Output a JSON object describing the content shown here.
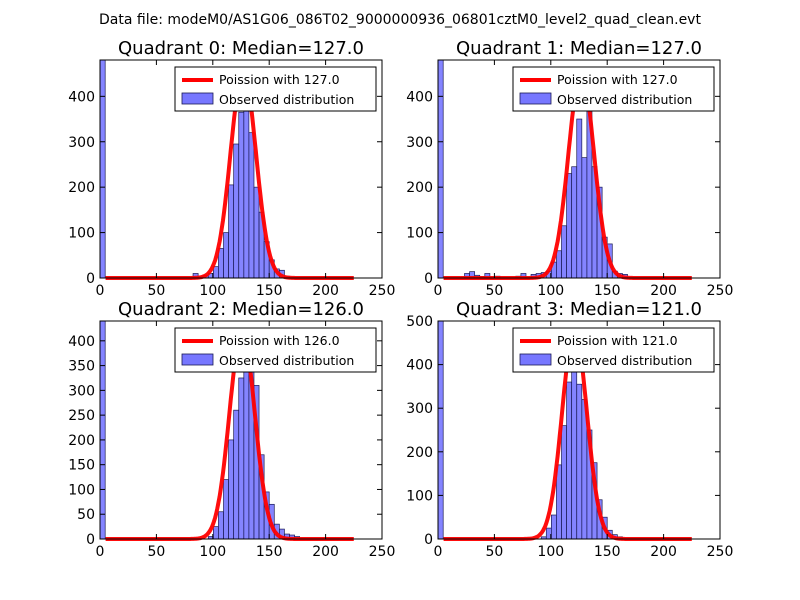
{
  "figure": {
    "suptitle": "Data file: modeM0/AS1G06_086T02_9000000936_06801cztM0_level2_quad_clean.evt",
    "colors": {
      "observed": "#7777ff",
      "poisson": "#ff0000",
      "frame": "#000000"
    }
  },
  "chart_data": [
    {
      "type": "bar",
      "title": "Quadrant 0: Median=127.0",
      "xlim": [
        0,
        250
      ],
      "ylim": [
        0,
        480
      ],
      "xticks": [
        0,
        50,
        100,
        150,
        200,
        250
      ],
      "yticks": [
        0,
        100,
        200,
        300,
        400
      ],
      "legend": {
        "placement": "top-right",
        "poisson_label": "Poission with 127.0",
        "observed_label": "Observed distribution"
      },
      "poisson_mean": 127.0,
      "poisson_peak": 455,
      "bins": [
        {
          "x0": 0,
          "x1": 4.6,
          "value": 480
        },
        {
          "x0": 82.5,
          "x1": 87,
          "value": 10
        },
        {
          "x0": 87,
          "x1": 91.5,
          "value": 4
        },
        {
          "x0": 91.5,
          "x1": 96,
          "value": 6
        },
        {
          "x0": 96,
          "x1": 100.5,
          "value": 10
        },
        {
          "x0": 100.5,
          "x1": 105,
          "value": 25
        },
        {
          "x0": 105,
          "x1": 109.5,
          "value": 65
        },
        {
          "x0": 109.5,
          "x1": 114,
          "value": 100
        },
        {
          "x0": 114,
          "x1": 118.5,
          "value": 205
        },
        {
          "x0": 118.5,
          "x1": 123,
          "value": 295
        },
        {
          "x0": 123,
          "x1": 127.5,
          "value": 365
        },
        {
          "x0": 127.5,
          "x1": 132,
          "value": 460
        },
        {
          "x0": 132,
          "x1": 136.5,
          "value": 320
        },
        {
          "x0": 136.5,
          "x1": 141,
          "value": 200
        },
        {
          "x0": 141,
          "x1": 145.5,
          "value": 145
        },
        {
          "x0": 145.5,
          "x1": 150,
          "value": 80
        },
        {
          "x0": 150,
          "x1": 154.5,
          "value": 40
        },
        {
          "x0": 154.5,
          "x1": 159,
          "value": 20
        },
        {
          "x0": 159,
          "x1": 163.5,
          "value": 17
        },
        {
          "x0": 163.5,
          "x1": 168,
          "value": 4
        }
      ]
    },
    {
      "type": "bar",
      "title": "Quadrant 1: Median=127.0",
      "xlim": [
        0,
        250
      ],
      "ylim": [
        0,
        480
      ],
      "xticks": [
        0,
        50,
        100,
        150,
        200,
        250
      ],
      "yticks": [
        0,
        100,
        200,
        300,
        400
      ],
      "legend": {
        "placement": "top-right",
        "poisson_label": "Poission with 127.0",
        "observed_label": "Observed distribution"
      },
      "poisson_mean": 127.0,
      "poisson_peak": 455,
      "bins": [
        {
          "x0": 0,
          "x1": 4.6,
          "value": 480
        },
        {
          "x0": 23.5,
          "x1": 28,
          "value": 10
        },
        {
          "x0": 28,
          "x1": 32.5,
          "value": 14
        },
        {
          "x0": 32.5,
          "x1": 37,
          "value": 6
        },
        {
          "x0": 37,
          "x1": 41.5,
          "value": 3
        },
        {
          "x0": 41.5,
          "x1": 46,
          "value": 10
        },
        {
          "x0": 50.5,
          "x1": 55,
          "value": 4
        },
        {
          "x0": 69,
          "x1": 73.5,
          "value": 4
        },
        {
          "x0": 73.5,
          "x1": 78,
          "value": 10
        },
        {
          "x0": 82.5,
          "x1": 87,
          "value": 8
        },
        {
          "x0": 87,
          "x1": 91.5,
          "value": 10
        },
        {
          "x0": 91.5,
          "x1": 96,
          "value": 12
        },
        {
          "x0": 96,
          "x1": 100.5,
          "value": 15
        },
        {
          "x0": 100.5,
          "x1": 105,
          "value": 35
        },
        {
          "x0": 105,
          "x1": 109.5,
          "value": 60
        },
        {
          "x0": 109.5,
          "x1": 114,
          "value": 115
        },
        {
          "x0": 114,
          "x1": 118.5,
          "value": 230
        },
        {
          "x0": 118.5,
          "x1": 123,
          "value": 245
        },
        {
          "x0": 123,
          "x1": 127.5,
          "value": 350
        },
        {
          "x0": 127.5,
          "x1": 132,
          "value": 265
        },
        {
          "x0": 132,
          "x1": 136.5,
          "value": 370
        },
        {
          "x0": 136.5,
          "x1": 141,
          "value": 245
        },
        {
          "x0": 141,
          "x1": 145.5,
          "value": 200
        },
        {
          "x0": 145.5,
          "x1": 150,
          "value": 90
        },
        {
          "x0": 150,
          "x1": 154.5,
          "value": 75
        },
        {
          "x0": 154.5,
          "x1": 159,
          "value": 15
        },
        {
          "x0": 159,
          "x1": 163.5,
          "value": 10
        },
        {
          "x0": 163.5,
          "x1": 168,
          "value": 8
        }
      ]
    },
    {
      "type": "bar",
      "title": "Quadrant 2: Median=126.0",
      "xlim": [
        0,
        250
      ],
      "ylim": [
        0,
        440
      ],
      "xticks": [
        0,
        50,
        100,
        150,
        200,
        250
      ],
      "yticks": [
        0,
        50,
        100,
        150,
        200,
        250,
        300,
        350,
        400
      ],
      "legend": {
        "placement": "top-right",
        "poisson_label": "Poission with 126.0",
        "observed_label": "Observed distribution"
      },
      "poisson_mean": 126.0,
      "poisson_peak": 420,
      "bins": [
        {
          "x0": 0,
          "x1": 4.6,
          "value": 440
        },
        {
          "x0": 96,
          "x1": 100.5,
          "value": 5
        },
        {
          "x0": 100.5,
          "x1": 105,
          "value": 25
        },
        {
          "x0": 105,
          "x1": 109.5,
          "value": 55
        },
        {
          "x0": 109.5,
          "x1": 114,
          "value": 120
        },
        {
          "x0": 114,
          "x1": 118.5,
          "value": 200
        },
        {
          "x0": 118.5,
          "x1": 123,
          "value": 260
        },
        {
          "x0": 123,
          "x1": 127.5,
          "value": 325
        },
        {
          "x0": 127.5,
          "x1": 132,
          "value": 405
        },
        {
          "x0": 132,
          "x1": 136.5,
          "value": 350
        },
        {
          "x0": 136.5,
          "x1": 141,
          "value": 310
        },
        {
          "x0": 141,
          "x1": 145.5,
          "value": 170
        },
        {
          "x0": 145.5,
          "x1": 150,
          "value": 95
        },
        {
          "x0": 150,
          "x1": 154.5,
          "value": 70
        },
        {
          "x0": 154.5,
          "x1": 159,
          "value": 30
        },
        {
          "x0": 159,
          "x1": 163.5,
          "value": 20
        },
        {
          "x0": 163.5,
          "x1": 168,
          "value": 10
        },
        {
          "x0": 168,
          "x1": 172.5,
          "value": 8
        },
        {
          "x0": 172.5,
          "x1": 177,
          "value": 5
        }
      ]
    },
    {
      "type": "bar",
      "title": "Quadrant 3: Median=121.0",
      "xlim": [
        0,
        250
      ],
      "ylim": [
        0,
        500
      ],
      "xticks": [
        0,
        50,
        100,
        150,
        200,
        250
      ],
      "yticks": [
        0,
        100,
        200,
        300,
        400,
        500
      ],
      "legend": {
        "placement": "top-right",
        "poisson_label": "Poission with 121.0",
        "observed_label": "Observed distribution"
      },
      "poisson_mean": 121.0,
      "poisson_peak": 480,
      "bins": [
        {
          "x0": 0,
          "x1": 4.6,
          "value": 500
        },
        {
          "x0": 91.5,
          "x1": 96,
          "value": 5
        },
        {
          "x0": 96,
          "x1": 100.5,
          "value": 25
        },
        {
          "x0": 100.5,
          "x1": 105,
          "value": 55
        },
        {
          "x0": 105,
          "x1": 109.5,
          "value": 170
        },
        {
          "x0": 109.5,
          "x1": 114,
          "value": 260
        },
        {
          "x0": 114,
          "x1": 118.5,
          "value": 360
        },
        {
          "x0": 118.5,
          "x1": 123,
          "value": 445
        },
        {
          "x0": 123,
          "x1": 127.5,
          "value": 355
        },
        {
          "x0": 127.5,
          "x1": 132,
          "value": 320
        },
        {
          "x0": 132,
          "x1": 136.5,
          "value": 250
        },
        {
          "x0": 136.5,
          "x1": 141,
          "value": 175
        },
        {
          "x0": 141,
          "x1": 145.5,
          "value": 90
        },
        {
          "x0": 145.5,
          "x1": 150,
          "value": 50
        },
        {
          "x0": 150,
          "x1": 154.5,
          "value": 20
        },
        {
          "x0": 154.5,
          "x1": 159,
          "value": 10
        },
        {
          "x0": 159,
          "x1": 163.5,
          "value": 5
        }
      ]
    }
  ]
}
